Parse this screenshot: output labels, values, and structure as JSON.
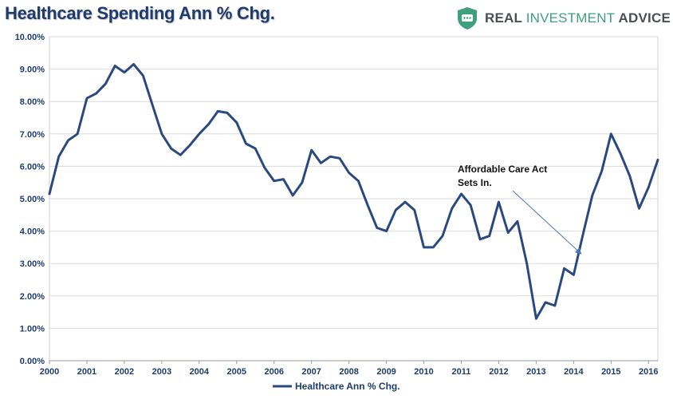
{
  "brand": {
    "name_part1": "REAL ",
    "name_part2": "INVESTMENT",
    "name_part3": " ADVICE",
    "logo_icon": "shield-chat-icon",
    "logo_color": "#3fa07d"
  },
  "chart_data": {
    "type": "line",
    "title": "Healthcare Spending Ann % Chg.",
    "xlabel": "",
    "ylabel": "",
    "xlim": [
      2000,
      2016.25
    ],
    "ylim": [
      0,
      10
    ],
    "grid": true,
    "legend_position": "bottom",
    "x_ticks": [
      "2000",
      "2001",
      "2002",
      "2003",
      "2004",
      "2005",
      "2006",
      "2007",
      "2008",
      "2009",
      "2010",
      "2011",
      "2012",
      "2013",
      "2014",
      "2015",
      "2016"
    ],
    "y_ticks": [
      "0.00%",
      "1.00%",
      "2.00%",
      "3.00%",
      "4.00%",
      "5.00%",
      "6.00%",
      "7.00%",
      "8.00%",
      "9.00%",
      "10.00%"
    ],
    "series": [
      {
        "name": "Healthcare Ann % Chg.",
        "color": "#2a4a7f",
        "x": [
          2000.0,
          2000.25,
          2000.5,
          2000.75,
          2001.0,
          2001.25,
          2001.5,
          2001.75,
          2002.0,
          2002.25,
          2002.5,
          2002.75,
          2003.0,
          2003.25,
          2003.5,
          2003.75,
          2004.0,
          2004.25,
          2004.5,
          2004.75,
          2005.0,
          2005.25,
          2005.5,
          2005.75,
          2006.0,
          2006.25,
          2006.5,
          2006.75,
          2007.0,
          2007.25,
          2007.5,
          2007.75,
          2008.0,
          2008.25,
          2008.5,
          2008.75,
          2009.0,
          2009.25,
          2009.5,
          2009.75,
          2010.0,
          2010.25,
          2010.5,
          2010.75,
          2011.0,
          2011.25,
          2011.5,
          2011.75,
          2012.0,
          2012.25,
          2012.5,
          2012.75,
          2013.0,
          2013.25,
          2013.5,
          2013.75,
          2014.0,
          2014.25,
          2014.5,
          2014.75,
          2015.0,
          2015.25,
          2015.5,
          2015.75,
          2016.0,
          2016.25
        ],
        "values": [
          5.15,
          6.3,
          6.8,
          7.0,
          8.1,
          8.25,
          8.55,
          9.1,
          8.9,
          9.15,
          8.8,
          7.9,
          7.0,
          6.55,
          6.35,
          6.65,
          7.0,
          7.3,
          7.7,
          7.65,
          7.35,
          6.7,
          6.55,
          5.95,
          5.55,
          5.6,
          5.1,
          5.5,
          6.5,
          6.1,
          6.3,
          6.25,
          5.8,
          5.55,
          4.8,
          4.1,
          4.0,
          4.65,
          4.9,
          4.65,
          3.5,
          3.5,
          3.85,
          4.7,
          5.15,
          4.8,
          3.75,
          3.85,
          4.9,
          3.95,
          4.3,
          3.0,
          1.3,
          1.8,
          1.7,
          2.85,
          2.65,
          3.9,
          5.1,
          5.85,
          7.0,
          6.4,
          5.7,
          4.7,
          5.35,
          6.2
        ]
      }
    ],
    "annotations": [
      {
        "text_line1": "Affordable Care Act",
        "text_line2": "Sets In.",
        "arrow_to_x": 2014.2,
        "arrow_to_y": 3.3
      }
    ]
  }
}
